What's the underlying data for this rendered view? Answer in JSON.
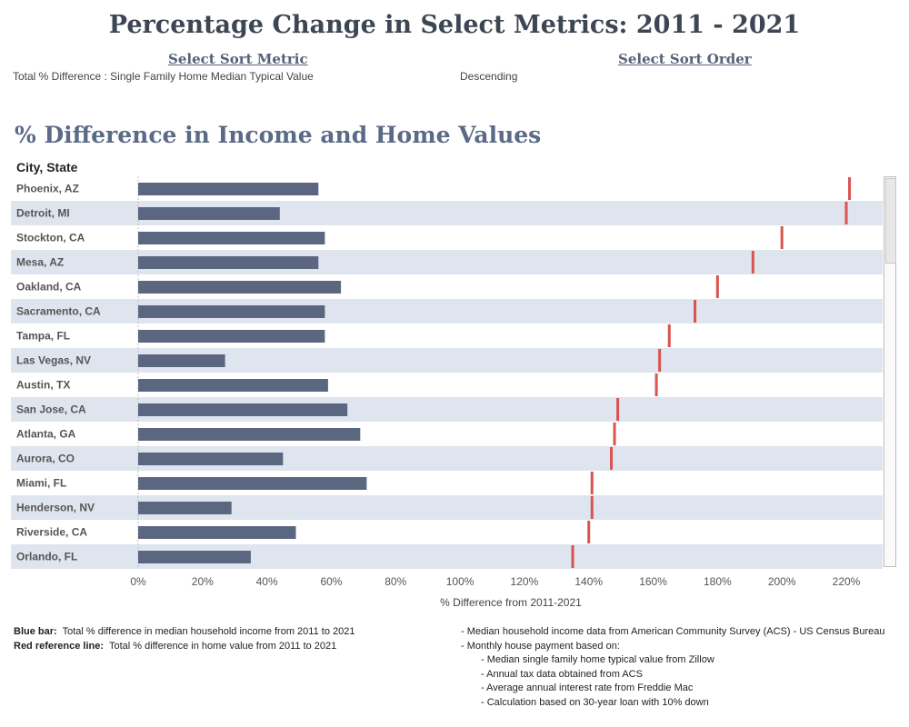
{
  "title": "Percentage Change in Select Metrics: 2011 - 2021",
  "controls": {
    "sort_metric_heading": "Select Sort Metric",
    "sort_metric_value": "Total % Difference : Single Family Home Median Typical Value",
    "sort_order_heading": "Select Sort Order",
    "sort_order_value": "Descending"
  },
  "colors": {
    "bar": "#5b6780",
    "reference_line": "#d9534f",
    "band": "#dfe5ee"
  },
  "chart_data": {
    "type": "bar",
    "orientation": "horizontal",
    "title": "% Difference in Income and Home Values",
    "row_header": "City, State",
    "xlabel": "% Difference from 2011-2021",
    "xlim": [
      -3,
      232
    ],
    "xticks": [
      0,
      20,
      40,
      60,
      80,
      100,
      120,
      140,
      160,
      180,
      200,
      220
    ],
    "tick_suffix": "%",
    "categories": [
      "Phoenix, AZ",
      "Detroit, MI",
      "Stockton, CA",
      "Mesa, AZ",
      "Oakland, CA",
      "Sacramento, CA",
      "Tampa, FL",
      "Las Vegas, NV",
      "Austin, TX",
      "San Jose, CA",
      "Atlanta, GA",
      "Aurora, CO",
      "Miami, FL",
      "Henderson, NV",
      "Riverside, CA",
      "Orlando, FL"
    ],
    "series": [
      {
        "name": "Blue bar",
        "values": [
          56,
          44,
          58,
          56,
          63,
          58,
          58,
          27,
          59,
          65,
          69,
          45,
          71,
          29,
          49,
          35
        ]
      },
      {
        "name": "Red reference line",
        "values": [
          221,
          220,
          200,
          191,
          180,
          173,
          165,
          162,
          161,
          149,
          148,
          147,
          141,
          141,
          140,
          135
        ]
      }
    ]
  },
  "notes": {
    "blue_label": "Blue bar:",
    "blue_text": "Total % difference in median household income from 2011 to 2021",
    "red_label": "Red reference line:",
    "red_text": "Total % difference in home value from 2011 to 2021",
    "sources": [
      "- Median household income data from American Community Survey (ACS) - US Census Bureau",
      "- Monthly house payment based on:",
      "- Median single family home typical value from Zillow",
      "- Annual tax data obtained from ACS",
      "- Average annual interest rate from Freddie Mac",
      "- Calculation based on 30-year loan with 10% down"
    ]
  }
}
